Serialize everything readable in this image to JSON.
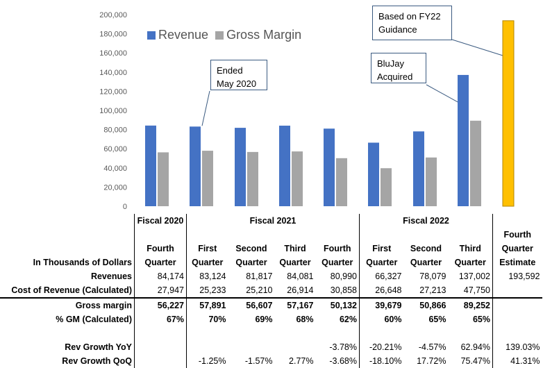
{
  "chart_data": {
    "type": "bar",
    "categories": [
      "Fiscal 2020 Fourth Quarter",
      "Fiscal 2021 First Quarter",
      "Fiscal 2021 Second Quarter",
      "Fiscal 2021 Third Quarter",
      "Fiscal 2021 Fourth Quarter",
      "Fiscal 2022 First Quarter",
      "Fiscal 2022 Second Quarter",
      "Fiscal 2022 Third Quarter",
      "Fourth Quarter Estimate"
    ],
    "series": [
      {
        "name": "Revenue",
        "values": [
          84174,
          83124,
          81817,
          84081,
          80990,
          66327,
          78079,
          137002,
          null
        ],
        "color": "#4472C4"
      },
      {
        "name": "Gross Margin",
        "values": [
          56227,
          57891,
          56607,
          57167,
          50132,
          39679,
          50866,
          89252,
          null
        ],
        "color": "#A5A5A5"
      },
      {
        "name": "",
        "values": [
          null,
          null,
          null,
          null,
          null,
          null,
          null,
          null,
          193592
        ],
        "color": "#FFC000"
      }
    ],
    "ylim": [
      0,
      200000
    ],
    "yticks": [
      "0",
      "20,000",
      "40,000",
      "60,000",
      "80,000",
      "100,000",
      "120,000",
      "140,000",
      "160,000",
      "180,000",
      "200,000"
    ],
    "grid": false,
    "legend": "top-left",
    "annotations": [
      {
        "text": "Ended May 2020",
        "target": "Fiscal 2021 First Quarter"
      },
      {
        "text": "BluJay Acquired",
        "target": "Fiscal 2022 Third Quarter"
      },
      {
        "text": "Based on FY22 Guidance",
        "target": "Fourth Quarter Estimate"
      }
    ]
  },
  "callouts": {
    "ended": [
      "Ended",
      "May 2020"
    ],
    "blujay": [
      "BluJay",
      "Acquired"
    ],
    "guidance": [
      "Based on FY22",
      "Guidance"
    ]
  },
  "table": {
    "fiscal_years": [
      "Fiscal 2020",
      "Fiscal 2021",
      "Fiscal 2022"
    ],
    "units_label": "In Thousands of Dollars",
    "column_headers": [
      [
        "",
        "Fourth",
        "Quarter"
      ],
      [
        "",
        "First",
        "Quarter"
      ],
      [
        "",
        "Second",
        "Quarter"
      ],
      [
        "",
        "Third",
        "Quarter"
      ],
      [
        "",
        "Fourth",
        "Quarter"
      ],
      [
        "",
        "First",
        "Quarter"
      ],
      [
        "",
        "Second",
        "Quarter"
      ],
      [
        "",
        "Third",
        "Quarter"
      ],
      [
        "Fourth",
        "Quarter",
        "Estimate"
      ]
    ],
    "rows": [
      {
        "label": "Revenues",
        "values": [
          "84,174",
          "83,124",
          "81,817",
          "84,081",
          "80,990",
          "66,327",
          "78,079",
          "137,002",
          "193,592"
        ]
      },
      {
        "label": "Cost of Revenue (Calculated)",
        "values": [
          "27,947",
          "25,233",
          "25,210",
          "26,914",
          "30,858",
          "26,648",
          "27,213",
          "47,750",
          ""
        ]
      },
      {
        "label": "Gross margin",
        "values": [
          "56,227",
          "57,891",
          "56,607",
          "57,167",
          "50,132",
          "39,679",
          "50,866",
          "89,252",
          ""
        ]
      },
      {
        "label": "% GM (Calculated)",
        "values": [
          "67%",
          "70%",
          "69%",
          "68%",
          "62%",
          "60%",
          "65%",
          "65%",
          ""
        ]
      },
      {
        "label": "Rev Growth YoY",
        "values": [
          "",
          "",
          "",
          "",
          "-3.78%",
          "-20.21%",
          "-4.57%",
          "62.94%",
          "139.03%"
        ]
      },
      {
        "label": "Rev Growth QoQ",
        "values": [
          "",
          "-1.25%",
          "-1.57%",
          "2.77%",
          "-3.68%",
          "-18.10%",
          "17.72%",
          "75.47%",
          "41.31%"
        ]
      }
    ]
  }
}
